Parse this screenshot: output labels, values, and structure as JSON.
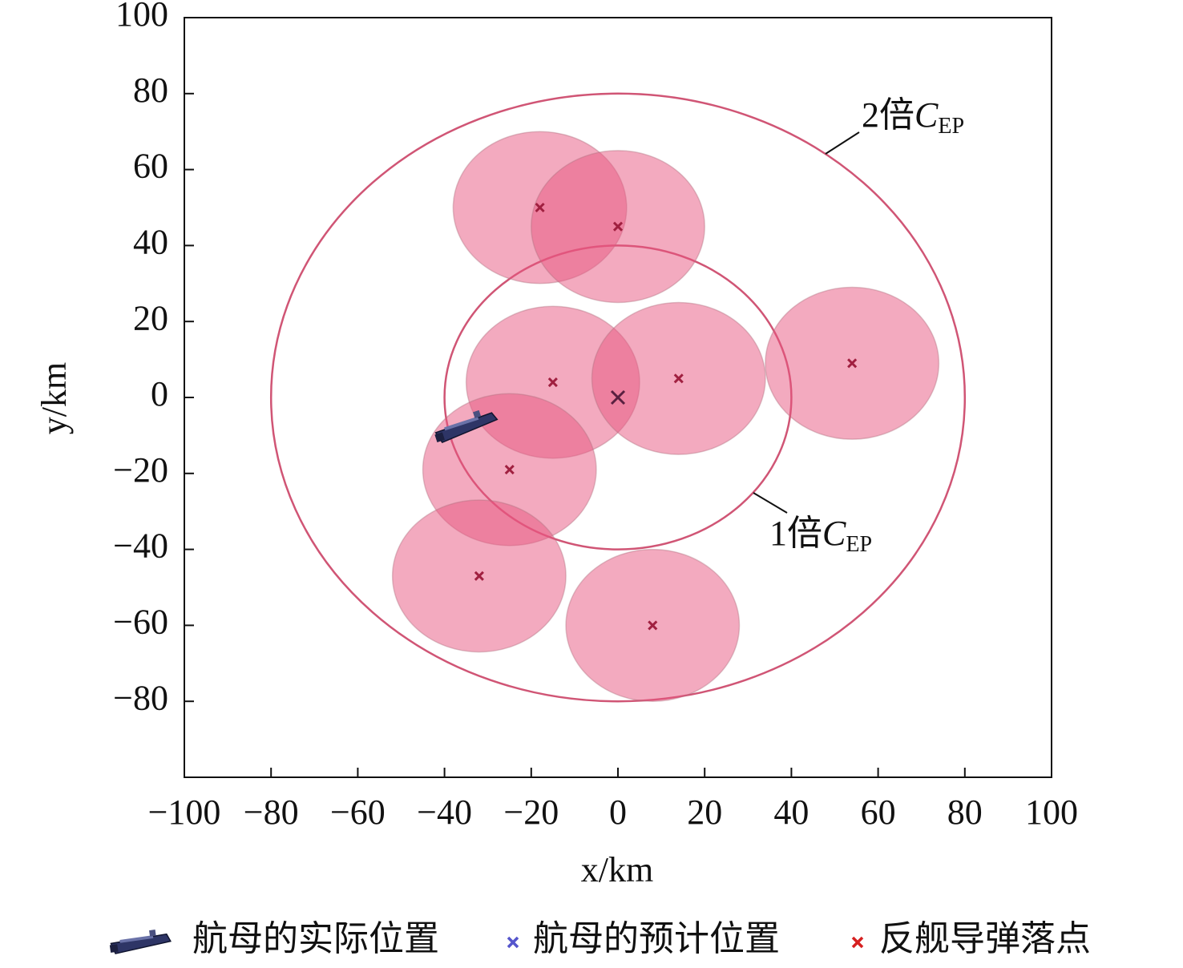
{
  "chart_data": {
    "type": "scatter",
    "xlabel": "x/km",
    "ylabel": "y/km",
    "xlim": [
      -100,
      100
    ],
    "ylim": [
      -100,
      100
    ],
    "xticks": [
      {
        "value": -100,
        "label": "−100"
      },
      {
        "value": -80,
        "label": "−80"
      },
      {
        "value": -60,
        "label": "−60"
      },
      {
        "value": -40,
        "label": "−40"
      },
      {
        "value": -20,
        "label": "−20"
      },
      0,
      20,
      40,
      60,
      80,
      100
    ],
    "yticks": [
      {
        "value": -80,
        "label": "−80"
      },
      {
        "value": -60,
        "label": "−60"
      },
      {
        "value": -40,
        "label": "−40"
      },
      {
        "value": -20,
        "label": "−20"
      },
      0,
      20,
      40,
      60,
      80,
      100
    ],
    "series": [
      {
        "name": "航母的实际位置",
        "color": "#2e3566",
        "marker": "ship",
        "x": [
          -35
        ],
        "values": [
          -8
        ]
      },
      {
        "name": "航母的预计位置",
        "color": "#5555cc",
        "marker": "x",
        "x": [
          0
        ],
        "values": [
          0
        ]
      },
      {
        "name": "反舰导弹落点",
        "color": "#d62020",
        "marker": "x",
        "circle_color": "#e8557f",
        "radius": 20,
        "x": [
          -18,
          0,
          -15,
          14,
          54,
          -25,
          -32,
          8
        ],
        "values": [
          50,
          45,
          4,
          5,
          9,
          -19,
          -47,
          -60
        ]
      }
    ],
    "annotations": [
      {
        "prefix": "2倍",
        "symbol": "C",
        "subscript": "EP",
        "radius": 80
      },
      {
        "prefix": "1倍",
        "symbol": "C",
        "subscript": "EP",
        "radius": 40
      }
    ],
    "ring_color": "#d05575"
  }
}
